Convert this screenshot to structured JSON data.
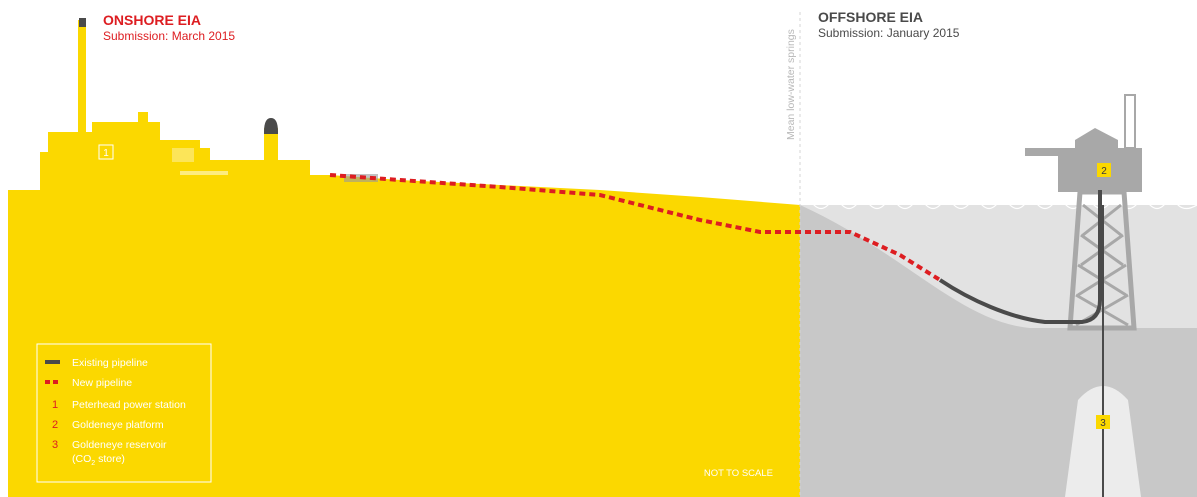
{
  "onshore": {
    "title": "ONSHORE EIA",
    "subtitle": "Submission: March 2015"
  },
  "offshore": {
    "title": "OFFSHORE EIA",
    "subtitle": "Submission: January 2015"
  },
  "boundary_label": "Mean low-water springs",
  "scale_note": "NOT TO SCALE",
  "legend": {
    "existing_pipeline": "Existing pipeline",
    "new_pipeline": "New pipeline",
    "items": [
      {
        "num": "1",
        "label": "Peterhead power station"
      },
      {
        "num": "2",
        "label": "Goldeneye platform"
      },
      {
        "num": "3",
        "label": "Goldeneye reservoir",
        "label_line2_prefix": "(CO",
        "label_line2_sub": "2",
        "label_line2_suffix": " store)"
      }
    ]
  },
  "markers": {
    "station": "1",
    "platform": "2",
    "reservoir": "3"
  },
  "colors": {
    "land_yellow": "#fbd800",
    "new_pipeline_red": "#dd1d21",
    "existing_pipeline_dark": "#4a4a4a",
    "sea_light": "#e3e3e3",
    "sea_deep": "#c9c9c9",
    "platform_grey": "#a8a8a8"
  }
}
